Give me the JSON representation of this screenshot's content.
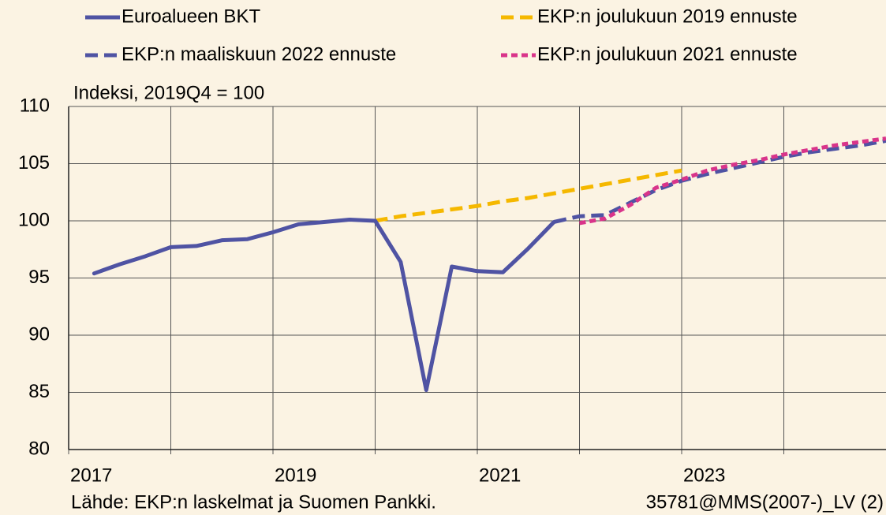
{
  "chart_data": {
    "type": "line",
    "y_label": "Indeksi, 2019Q4 = 100",
    "source": "Lähde: EKP:n laskelmat ja Suomen Pankki.",
    "code": "35781@MMS(2007-)_LV (2)",
    "xlim": [
      2017,
      2025
    ],
    "xticks": [
      2017,
      2019,
      2021,
      2023
    ],
    "xticks_minor": [
      2018,
      2020,
      2022,
      2024
    ],
    "ylim": [
      80,
      110
    ],
    "yticks": [
      80,
      85,
      90,
      95,
      100,
      105,
      110
    ],
    "grid": true,
    "series": [
      {
        "name": "Euroalueen BKT",
        "color": "#4f53a3",
        "dash": "solid",
        "x": [
          2017.25,
          2017.5,
          2017.75,
          2018.0,
          2018.25,
          2018.5,
          2018.75,
          2019.0,
          2019.25,
          2019.5,
          2019.75,
          2020.0,
          2020.25,
          2020.5,
          2020.75,
          2021.0,
          2021.25,
          2021.5,
          2021.75
        ],
        "values": [
          95.4,
          96.2,
          96.9,
          97.7,
          97.8,
          98.3,
          98.4,
          99.0,
          99.7,
          99.9,
          100.1,
          100.0,
          96.4,
          85.2,
          96.0,
          95.6,
          95.5,
          97.6,
          99.9
        ]
      },
      {
        "name": "EKP:n joulukuun 2019 ennuste",
        "color": "#f5b800",
        "dash": "long",
        "x": [
          2020.0,
          2020.25,
          2020.5,
          2020.75,
          2021.0,
          2021.25,
          2021.5,
          2021.75,
          2022.0,
          2022.25,
          2022.5,
          2022.75,
          2023.0
        ],
        "values": [
          100.0,
          100.4,
          100.7,
          101.0,
          101.3,
          101.7,
          102.0,
          102.4,
          102.8,
          103.2,
          103.6,
          104.0,
          104.4
        ]
      },
      {
        "name": "EKP:n maaliskuun 2022 ennuste",
        "color": "#4f53a3",
        "dash": "long",
        "x": [
          2021.75,
          2022.0,
          2022.25,
          2022.5,
          2022.75,
          2023.0,
          2023.25,
          2023.5,
          2023.75,
          2024.0,
          2024.25,
          2024.5,
          2024.75,
          2025.0
        ],
        "values": [
          99.9,
          100.4,
          100.5,
          101.6,
          102.7,
          103.5,
          104.1,
          104.6,
          105.1,
          105.6,
          106.0,
          106.3,
          106.6,
          107.0
        ]
      },
      {
        "name": "EKP:n joulukuun 2021 ennuste",
        "color": "#d9348a",
        "dash": "short",
        "x": [
          2022.0,
          2022.25,
          2022.5,
          2022.75,
          2023.0,
          2023.25,
          2023.5,
          2023.75,
          2024.0,
          2024.25,
          2024.5,
          2024.75,
          2025.0
        ],
        "values": [
          99.8,
          100.2,
          101.4,
          102.9,
          103.6,
          104.4,
          104.9,
          105.3,
          105.8,
          106.2,
          106.6,
          106.9,
          107.2
        ]
      }
    ]
  }
}
